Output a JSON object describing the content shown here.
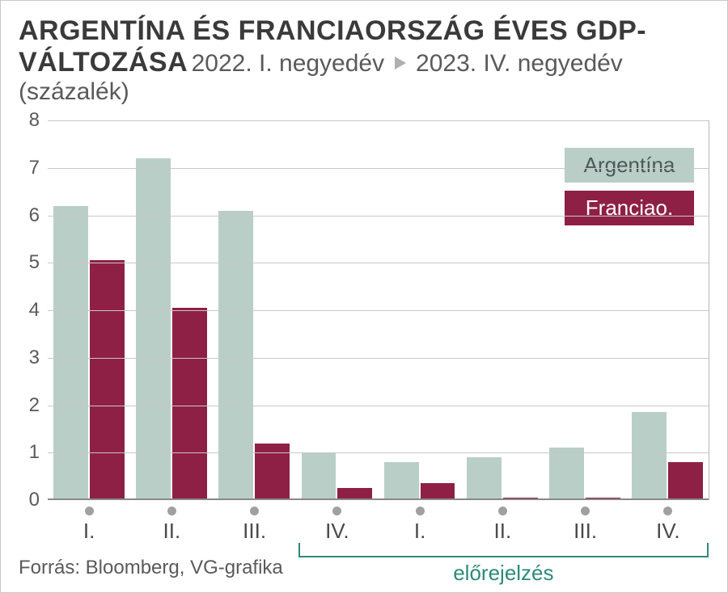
{
  "header": {
    "title_bold": "ARGENTÍNA ÉS FRANCIAORSZÁG ÉVES GDP-VÁLTOZÁSA",
    "subtitle_part1": "2022. I. negyedév",
    "subtitle_part2": "2023. IV. negyedév (százalék)"
  },
  "chart": {
    "type": "bar",
    "ylim": [
      0,
      8
    ],
    "ytick_step": 1,
    "y_labels": [
      "0",
      "1",
      "2",
      "3",
      "4",
      "5",
      "6",
      "7",
      "8"
    ],
    "grid_color": "#c8c8c8",
    "zero_color": "#888888",
    "background_color": "#ffffff",
    "categories": [
      "I.",
      "II.",
      "III.",
      "IV.",
      "I.",
      "II.",
      "III.",
      "IV."
    ],
    "series": [
      {
        "name": "Argentína",
        "color": "#b9cec7",
        "text_color": "#4a5a56",
        "values": [
          6.2,
          7.2,
          6.1,
          1.0,
          0.8,
          0.9,
          1.1,
          1.85
        ]
      },
      {
        "name": "Franciao.",
        "color": "#8e2046",
        "text_color": "#ffffff",
        "values": [
          5.05,
          4.05,
          1.2,
          0.25,
          0.35,
          0.05,
          0.05,
          0.8
        ]
      }
    ],
    "x_dot_color": "#a0a0a0",
    "label_fontsize": 24,
    "title_fontsize": 34
  },
  "forecast": {
    "label": "előrejelzés",
    "color": "#2e8a7a",
    "start_index": 3,
    "end_index": 7
  },
  "source": "Forrás: Bloomberg, VG-grafika"
}
